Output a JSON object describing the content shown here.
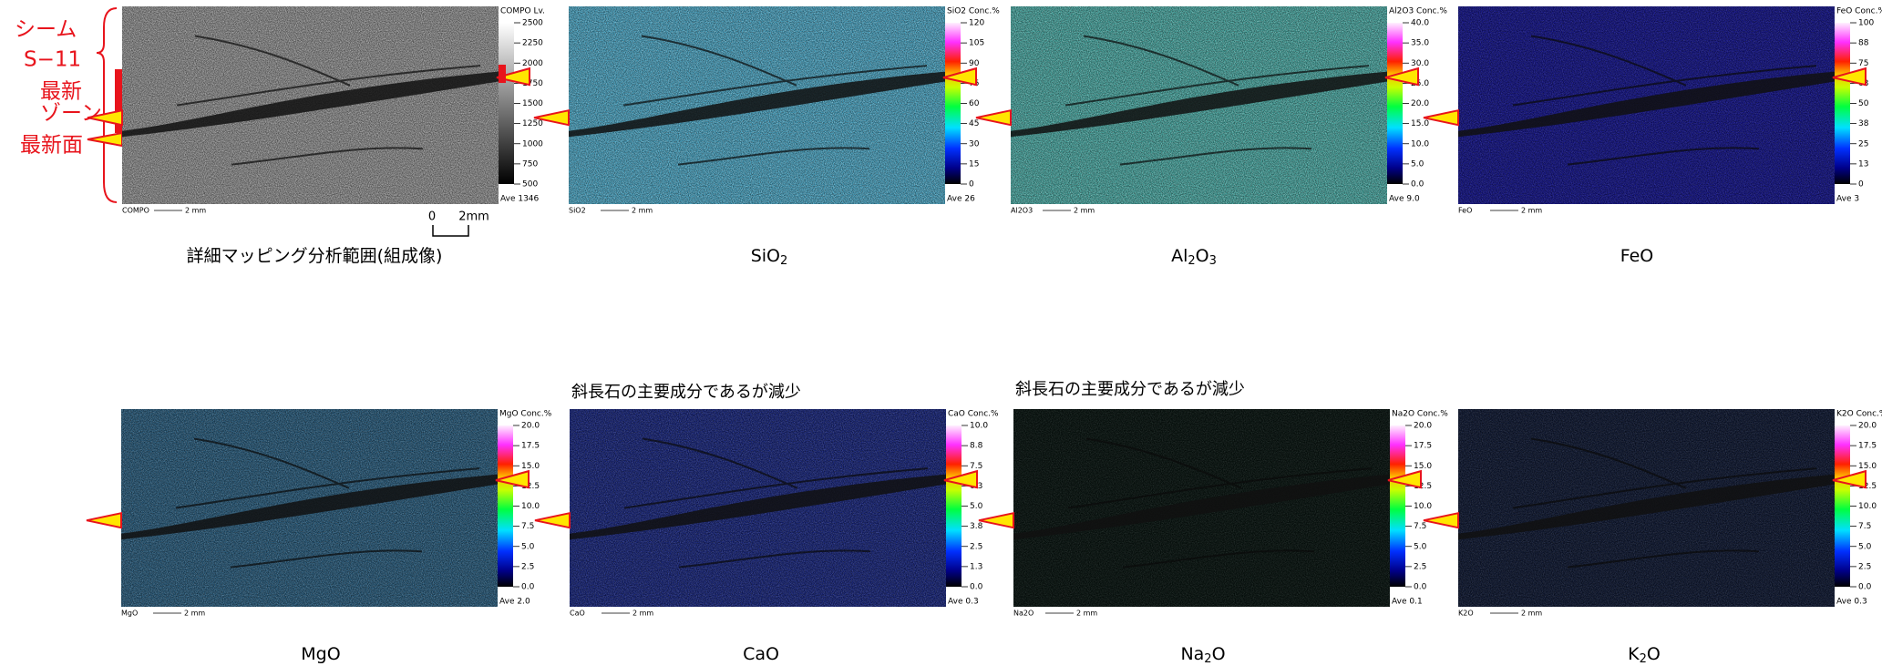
{
  "annotation": {
    "seam": "シーム",
    "seam_id": "S−11",
    "zone_1": "最新",
    "zone_2": "ゾーン",
    "surface": "最新面"
  },
  "scale": {
    "zero": "0",
    "length": "2mm"
  },
  "notes": [
    "斜長石の主要成分であるが減少",
    "斜長石の主要成分であるが減少"
  ],
  "panels": [
    {
      "header": "COMPO Lv.",
      "ticks": [
        "2500",
        "2250",
        "2000",
        "1750",
        "1500",
        "1250",
        "1000",
        "750",
        "500"
      ],
      "ave": "Ave 1346",
      "footer": "COMPO",
      "bar": "2 mm",
      "caption": [
        "詳細マッピング分析範囲(組成像)"
      ]
    },
    {
      "header": "SiO2 Conc.%",
      "ticks": [
        "120",
        "105",
        "90",
        "75",
        "60",
        "45",
        "30",
        "15",
        "0"
      ],
      "ave": "Ave 26",
      "footer": "SiO2",
      "bar": "2 mm",
      "caption": [
        "SiO",
        "2"
      ]
    },
    {
      "header": "Al2O3 Conc.%",
      "ticks": [
        "40.0",
        "35.0",
        "30.0",
        "25.0",
        "20.0",
        "15.0",
        "10.0",
        "5.0",
        "0.0"
      ],
      "ave": "Ave 9.0",
      "footer": "Al2O3",
      "bar": "2 mm",
      "caption": [
        "Al",
        "2",
        "O",
        "3"
      ]
    },
    {
      "header": "FeO Conc.%",
      "ticks": [
        "100",
        "88",
        "75",
        "63",
        "50",
        "38",
        "25",
        "13",
        "0"
      ],
      "ave": "Ave 3",
      "footer": "FeO",
      "bar": "2 mm",
      "caption": [
        "FeO"
      ]
    },
    {
      "header": "MgO Conc.%",
      "ticks": [
        "20.0",
        "17.5",
        "15.0",
        "12.5",
        "10.0",
        "7.5",
        "5.0",
        "2.5",
        "0.0"
      ],
      "ave": "Ave 2.0",
      "footer": "MgO",
      "bar": "2 mm",
      "caption": [
        "MgO"
      ]
    },
    {
      "header": "CaO Conc.%",
      "ticks": [
        "10.0",
        "8.8",
        "7.5",
        "6.3",
        "5.0",
        "3.8",
        "2.5",
        "1.3",
        "0.0"
      ],
      "ave": "Ave 0.3",
      "footer": "CaO",
      "bar": "2 mm",
      "caption": [
        "CaO"
      ]
    },
    {
      "header": "Na2O Conc.%",
      "ticks": [
        "20.0",
        "17.5",
        "15.0",
        "12.5",
        "10.0",
        "7.5",
        "5.0",
        "2.5",
        "0.0"
      ],
      "ave": "Ave 0.1",
      "footer": "Na2O",
      "bar": "2 mm",
      "caption": [
        "Na",
        "2",
        "O"
      ]
    },
    {
      "header": "K2O Conc.%",
      "ticks": [
        "20.0",
        "17.5",
        "15.0",
        "12.5",
        "10.0",
        "7.5",
        "5.0",
        "2.5",
        "0.0"
      ],
      "ave": "Ave 0.3",
      "footer": "K2O",
      "bar": "2 mm",
      "caption": [
        "K",
        "2",
        "O"
      ]
    }
  ]
}
